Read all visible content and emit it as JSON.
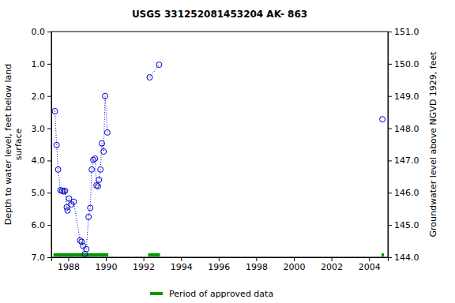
{
  "chart_data": {
    "type": "line",
    "title": "USGS 331252081453204 AK- 863",
    "y_label": [
      "Depth to water level, feet below land",
      "surface"
    ],
    "y2_label": "Groundwater level above NGVD 1929, feet",
    "xlim": [
      1987.1,
      2005.0
    ],
    "xticks": [
      1988,
      1990,
      1992,
      1994,
      1996,
      1998,
      2000,
      2002,
      2004
    ],
    "ylim": [
      7,
      0
    ],
    "yticks": [
      {
        "value": 0,
        "label": "0.0"
      },
      {
        "value": 1,
        "label": "1.0"
      },
      {
        "value": 2,
        "label": "2.0"
      },
      {
        "value": 3,
        "label": "3.0"
      },
      {
        "value": 4,
        "label": "4.0"
      },
      {
        "value": 5,
        "label": "5.0"
      },
      {
        "value": 6,
        "label": "6.0"
      },
      {
        "value": 7,
        "label": "7.0"
      }
    ],
    "y2lim": [
      144,
      151
    ],
    "y2ticks": [
      {
        "value": 144,
        "label": "144.0"
      },
      {
        "value": 145,
        "label": "145.0"
      },
      {
        "value": 146,
        "label": "146.0"
      },
      {
        "value": 147,
        "label": "147.0"
      },
      {
        "value": 148,
        "label": "148.0"
      },
      {
        "value": 149,
        "label": "149.0"
      },
      {
        "value": 150,
        "label": "150.0"
      },
      {
        "value": 151,
        "label": "151.0"
      }
    ],
    "series": [
      {
        "color": "#0000cc",
        "marker": "circle",
        "line_style": "dotted",
        "x": [
          1987.29,
          1987.38,
          1987.46,
          1987.58,
          1987.67,
          1987.75,
          1987.83,
          1987.92,
          1987.96,
          1988.04,
          1988.17,
          1988.29,
          1988.63,
          1988.71,
          1988.79,
          1988.88,
          1988.96,
          1989.08,
          1989.17,
          1989.25,
          1989.33,
          1989.42,
          1989.5,
          1989.58,
          1989.63,
          1989.71,
          1989.79,
          1989.88,
          1989.96,
          1990.08,
          1991.0,
          1992.33,
          1992.83,
          1998.0,
          2004.71
        ],
        "values": [
          2.47,
          3.52,
          4.28,
          4.92,
          4.94,
          4.96,
          4.94,
          5.45,
          5.55,
          5.18,
          5.36,
          5.28,
          6.48,
          6.52,
          6.65,
          6.9,
          6.75,
          5.75,
          5.47,
          4.28,
          3.98,
          3.94,
          4.77,
          4.8,
          4.6,
          4.28,
          3.47,
          3.72,
          2.0,
          3.13,
          null,
          1.42,
          1.03,
          null,
          2.72
        ]
      }
    ],
    "periods": {
      "name": "Period of approved data",
      "color": "#009900",
      "start": [
        1987.21,
        1992.25,
        2004.67
      ],
      "end": [
        1990.13,
        1992.88,
        2004.79
      ]
    }
  }
}
